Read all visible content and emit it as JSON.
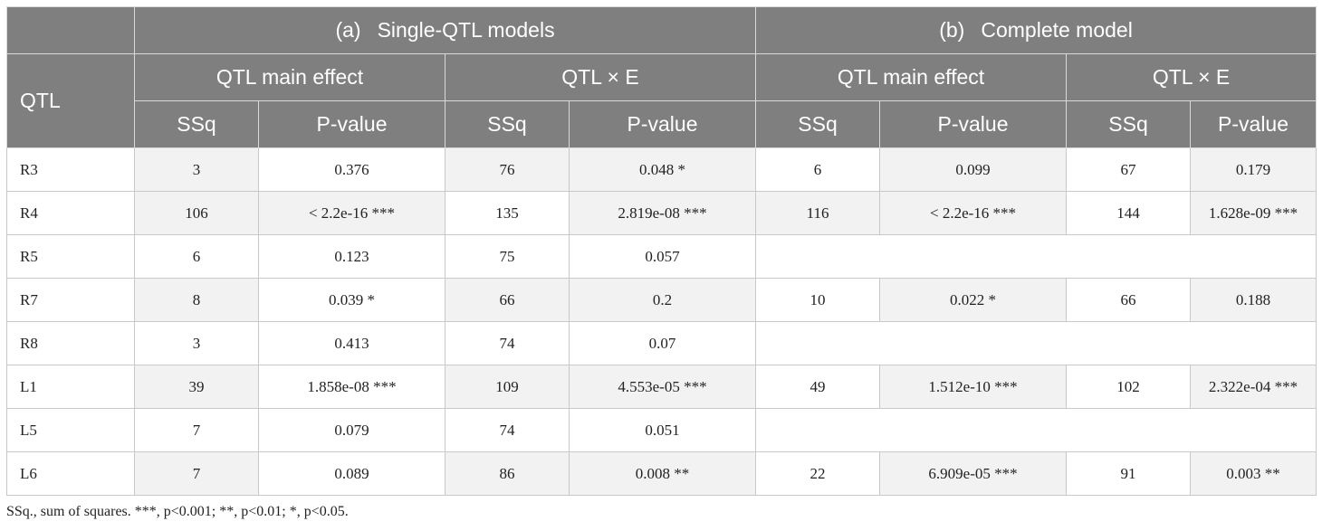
{
  "table": {
    "qtl_header": "QTL",
    "groups": [
      {
        "tag": "(a)",
        "title": "Single-QTL models"
      },
      {
        "tag": "(b)",
        "title": "Complete model"
      }
    ],
    "subgroups": [
      "QTL main effect",
      "QTL × E",
      "QTL main effect",
      "QTL × E"
    ],
    "columns": [
      "SSq",
      "P-value",
      "SSq",
      "P-value",
      "SSq",
      "P-value",
      "SSq",
      "P-value"
    ],
    "rows": [
      {
        "qtl": "R3",
        "cells": [
          "3",
          "0.376",
          "76",
          "0.048 *",
          "6",
          "0.099",
          "67",
          "0.179"
        ]
      },
      {
        "qtl": "R4",
        "cells": [
          "106",
          "< 2.2e-16 ***",
          "135",
          "2.819e-08 ***",
          "116",
          "< 2.2e-16 ***",
          "144",
          "1.628e-09 ***"
        ]
      },
      {
        "qtl": "R5",
        "cells": [
          "6",
          "0.123",
          "75",
          "0.057",
          "",
          "",
          "",
          ""
        ]
      },
      {
        "qtl": "R7",
        "cells": [
          "8",
          "0.039 *",
          "66",
          "0.2",
          "10",
          "0.022 *",
          "66",
          "0.188"
        ]
      },
      {
        "qtl": "R8",
        "cells": [
          "3",
          "0.413",
          "74",
          "0.07",
          "",
          "",
          "",
          ""
        ]
      },
      {
        "qtl": "L1",
        "cells": [
          "39",
          "1.858e-08 ***",
          "109",
          "4.553e-05 ***",
          "49",
          "1.512e-10 ***",
          "102",
          "2.322e-04 ***"
        ]
      },
      {
        "qtl": "L5",
        "cells": [
          "7",
          "0.079",
          "74",
          "0.051",
          "",
          "",
          "",
          ""
        ]
      },
      {
        "qtl": "L6",
        "cells": [
          "7",
          "0.089",
          "86",
          "0.008 **",
          "22",
          "6.909e-05 ***",
          "91",
          "0.003 **"
        ]
      }
    ],
    "footnote": "SSq., sum of squares. ***, p<0.001; **, p<0.01; *, p<0.05."
  }
}
